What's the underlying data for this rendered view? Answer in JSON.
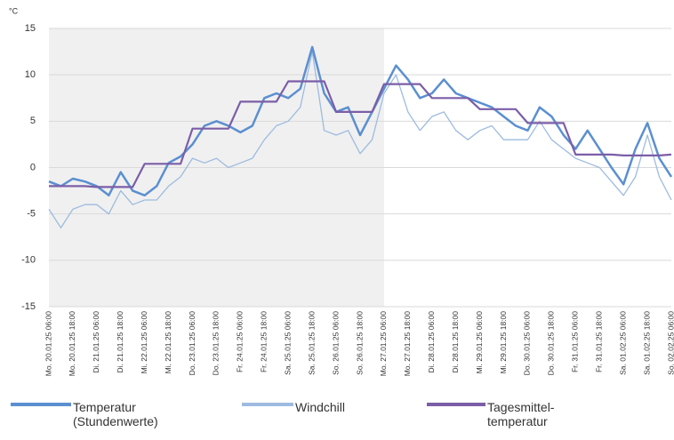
{
  "chart_data": {
    "type": "line",
    "y_label": "°C",
    "categories": [
      "Mo. 20.01.25 06:00",
      null,
      "Mo. 20.01.25 18:00",
      null,
      "Di. 21.01.25 06:00",
      null,
      "Di. 21.01.25 18:00",
      null,
      "Mi. 22.01.25 06:00",
      null,
      "Mi. 22.01.25 18:00",
      null,
      "Do. 23.01.25 06:00",
      null,
      "Do. 23.01.25 18:00",
      null,
      "Fr. 24.01.25 06:00",
      null,
      "Fr. 24.01.25 18:00",
      null,
      "Sa. 25.01.25 06:00",
      null,
      "Sa. 25.01.25 18:00",
      null,
      "So. 26.01.25 06:00",
      null,
      "So. 26.01.25 18:00",
      null,
      "Mo. 27.01.25 06:00",
      null,
      "Mo. 27.01.25 18:00",
      null,
      "Di. 28.01.25 06:00",
      null,
      "Di. 28.01.25 18:00",
      null,
      "Mi. 29.01.25 06:00",
      null,
      "Mi. 29.01.25 18:00",
      null,
      "Do. 30.01.25 06:00",
      null,
      "Do. 30.01.25 18:00",
      null,
      "Fr. 31.01.25 06:00",
      null,
      "Fr. 31.01.25 18:00",
      null,
      "Sa. 01.02.25 06:00",
      null,
      "Sa. 01.02.25 18:00",
      null,
      "So. 02.02.25 06:00"
    ],
    "series": [
      {
        "name": "Temperatur (Stundenwerte)",
        "color": "#5b8fd0",
        "width": 2.5,
        "values": [
          -1.5,
          -2.0,
          -1.2,
          -1.5,
          -2.0,
          -3.0,
          -0.5,
          -2.5,
          -3.0,
          -2.0,
          0.5,
          1.2,
          2.5,
          4.5,
          5.0,
          4.5,
          3.8,
          4.5,
          7.5,
          8.0,
          7.5,
          8.5,
          13.0,
          8.0,
          6.0,
          6.5,
          3.5,
          6.0,
          8.5,
          11.0,
          9.5,
          7.5,
          8.0,
          9.5,
          8.0,
          7.5,
          7.0,
          6.5,
          5.5,
          4.5,
          4.0,
          6.5,
          5.5,
          3.5,
          2.0,
          4.0,
          2.0,
          0.0,
          -1.8,
          2.0,
          4.8,
          1.0,
          -1.0
        ]
      },
      {
        "name": "Windchill",
        "color": "#9dbbe0",
        "width": 1.3,
        "values": [
          -4.5,
          -6.5,
          -4.5,
          -4.0,
          -4.0,
          -5.0,
          -2.5,
          -4.0,
          -3.5,
          -3.5,
          -2.0,
          -1.0,
          1.0,
          0.5,
          1.0,
          0.0,
          0.5,
          1.0,
          3.0,
          4.5,
          5.0,
          6.5,
          12.5,
          4.0,
          3.5,
          4.0,
          1.5,
          3.0,
          8.0,
          10.0,
          6.0,
          4.0,
          5.5,
          6.0,
          4.0,
          3.0,
          4.0,
          4.5,
          3.0,
          3.0,
          3.0,
          5.0,
          3.0,
          2.0,
          1.0,
          0.5,
          0.0,
          -1.5,
          -3.0,
          -1.0,
          3.5,
          -1.0,
          -3.5
        ]
      },
      {
        "name": "Tagesmittel-temperatur",
        "color": "#7b5ea7",
        "width": 2.2,
        "values": [
          -2.0,
          -2.0,
          -2.0,
          -2.0,
          -2.1,
          -2.1,
          -2.1,
          -2.1,
          0.4,
          0.4,
          0.4,
          0.4,
          4.2,
          4.2,
          4.2,
          4.2,
          7.1,
          7.1,
          7.1,
          7.1,
          9.3,
          9.3,
          9.3,
          9.3,
          6.0,
          6.0,
          6.0,
          6.0,
          9.0,
          9.0,
          9.0,
          9.0,
          7.5,
          7.5,
          7.5,
          7.5,
          6.3,
          6.3,
          6.3,
          6.3,
          4.8,
          4.8,
          4.8,
          4.8,
          1.4,
          1.4,
          1.4,
          1.4,
          1.3,
          1.3,
          1.3,
          1.3,
          1.4
        ]
      }
    ],
    "ylim": [
      -15,
      15
    ],
    "yticks": [
      -15,
      -10,
      -5,
      0,
      5,
      10,
      15
    ],
    "grid": true
  }
}
